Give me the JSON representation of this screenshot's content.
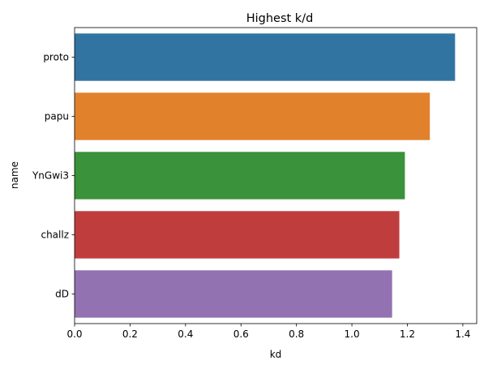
{
  "chart_data": {
    "type": "bar",
    "orientation": "horizontal",
    "title": "Highest k/d",
    "xlabel": "kd",
    "ylabel": "name",
    "categories": [
      "proto",
      "papu",
      "YnGwi3",
      "challz",
      "dD"
    ],
    "values": [
      1.372,
      1.281,
      1.191,
      1.171,
      1.145
    ],
    "colors": [
      "#3274a1",
      "#e1812c",
      "#3a923a",
      "#c03d3e",
      "#9372b2"
    ],
    "xlim": [
      0,
      1.45
    ],
    "xticks": [
      "0.0",
      "0.2",
      "0.4",
      "0.6",
      "0.8",
      "1.0",
      "1.2",
      "1.4"
    ],
    "grid": false,
    "legend": "none"
  }
}
